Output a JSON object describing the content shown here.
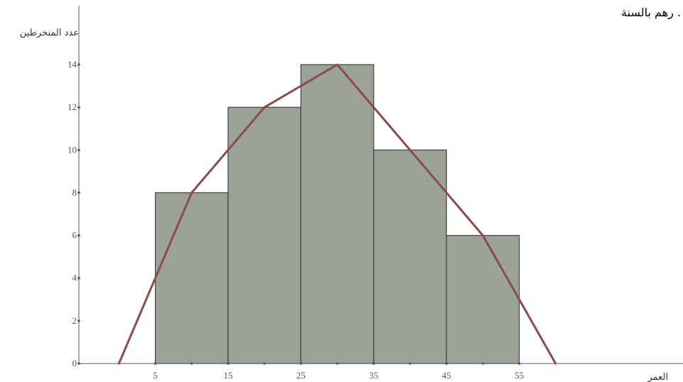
{
  "page": {
    "cut_text": "رهم بالسنة ."
  },
  "chart_data": {
    "type": "bar",
    "subtype": "histogram-with-frequency-polygon",
    "ylabel": "عدد المنخرطين",
    "xlabel": "العمر",
    "bins": [
      {
        "start": 5,
        "end": 15,
        "value": 8
      },
      {
        "start": 15,
        "end": 25,
        "value": 12
      },
      {
        "start": 25,
        "end": 35,
        "value": 14
      },
      {
        "start": 35,
        "end": 45,
        "value": 10
      },
      {
        "start": 45,
        "end": 55,
        "value": 6
      }
    ],
    "polygon": [
      {
        "x": 0,
        "y": 0
      },
      {
        "x": 10,
        "y": 8
      },
      {
        "x": 20,
        "y": 12
      },
      {
        "x": 30,
        "y": 14
      },
      {
        "x": 40,
        "y": 10
      },
      {
        "x": 50,
        "y": 6
      },
      {
        "x": 60,
        "y": 0
      }
    ],
    "x_ticks": [
      5,
      15,
      25,
      35,
      45,
      55
    ],
    "y_ticks": [
      0,
      2,
      4,
      6,
      8,
      10,
      12,
      14
    ],
    "xlim": [
      -5.5,
      77.5
    ],
    "ylim": [
      0,
      17
    ],
    "grid": false,
    "colors": {
      "bar_fill": "#9ba398",
      "bar_stroke": "#3f3f3f",
      "polygon": "#8b4a4c",
      "axis": "#555555"
    }
  }
}
